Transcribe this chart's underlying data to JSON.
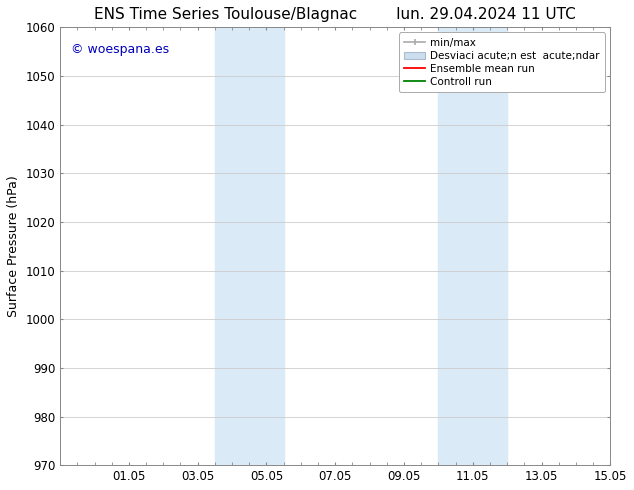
{
  "title_left": "ENS Time Series Toulouse/Blagnac",
  "title_right": "lun. 29.04.2024 11 UTC",
  "ylabel": "Surface Pressure (hPa)",
  "ylim": [
    970,
    1060
  ],
  "yticks": [
    970,
    980,
    990,
    1000,
    1010,
    1020,
    1030,
    1040,
    1050,
    1060
  ],
  "xtick_labels": [
    "01.05",
    "03.05",
    "05.05",
    "07.05",
    "09.05",
    "11.05",
    "13.05",
    "15.05"
  ],
  "xtick_positions": [
    2,
    4,
    6,
    8,
    10,
    12,
    14,
    16
  ],
  "shaded_regions": [
    {
      "xstart": 4.5,
      "xend": 6.5,
      "color": "#daeaf7"
    },
    {
      "xstart": 11.0,
      "xend": 13.0,
      "color": "#daeaf7"
    }
  ],
  "watermark_text": "© woespana.es",
  "watermark_color": "#0000bb",
  "legend_label_minmax": "min/max",
  "legend_label_std": "Desviaci acute;n est  acute;ndar",
  "legend_label_ens": "Ensemble mean run",
  "legend_label_ctrl": "Controll run",
  "bg_color": "#ffffff",
  "grid_color": "#cccccc",
  "title_fontsize": 11,
  "label_fontsize": 9,
  "tick_fontsize": 8.5,
  "legend_fontsize": 7.5
}
